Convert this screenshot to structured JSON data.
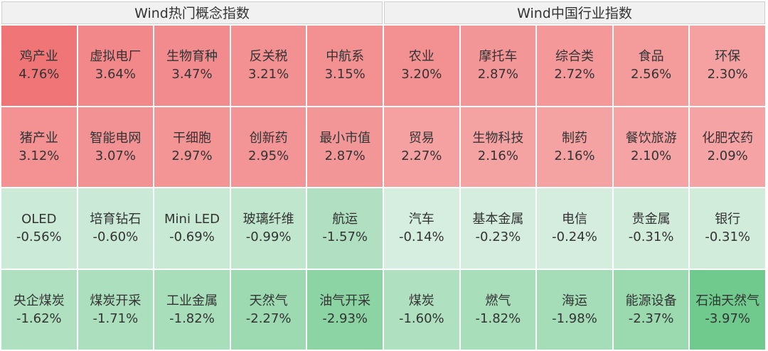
{
  "panels": [
    {
      "title": "Wind热门概念指数",
      "cells": [
        {
          "name": "鸡产业",
          "change": "4.76%"
        },
        {
          "name": "虚拟电厂",
          "change": "3.64%"
        },
        {
          "name": "生物育种",
          "change": "3.47%"
        },
        {
          "name": "反关税",
          "change": "3.21%"
        },
        {
          "name": "中航系",
          "change": "3.15%"
        },
        {
          "name": "猪产业",
          "change": "3.12%"
        },
        {
          "name": "智能电网",
          "change": "3.07%"
        },
        {
          "name": "干细胞",
          "change": "2.97%"
        },
        {
          "name": "创新药",
          "change": "2.95%"
        },
        {
          "name": "最小市值",
          "change": "2.87%"
        },
        {
          "name": "OLED",
          "change": "-0.56%"
        },
        {
          "name": "培育钻石",
          "change": "-0.60%"
        },
        {
          "name": "Mini LED",
          "change": "-0.69%"
        },
        {
          "name": "玻璃纤维",
          "change": "-0.99%"
        },
        {
          "name": "航运",
          "change": "-1.57%"
        },
        {
          "name": "央企煤炭",
          "change": "-1.62%"
        },
        {
          "name": "煤炭开采",
          "change": "-1.71%"
        },
        {
          "name": "工业金属",
          "change": "-1.82%"
        },
        {
          "name": "天然气",
          "change": "-2.27%"
        },
        {
          "name": "油气开采",
          "change": "-2.93%"
        }
      ]
    },
    {
      "title": "Wind中国行业指数",
      "cells": [
        {
          "name": "农业",
          "change": "3.20%"
        },
        {
          "name": "摩托车",
          "change": "2.87%"
        },
        {
          "name": "综合类",
          "change": "2.72%"
        },
        {
          "name": "食品",
          "change": "2.56%"
        },
        {
          "name": "环保",
          "change": "2.30%"
        },
        {
          "name": "贸易",
          "change": "2.27%"
        },
        {
          "name": "生物科技",
          "change": "2.16%"
        },
        {
          "name": "制药",
          "change": "2.16%"
        },
        {
          "name": "餐饮旅游",
          "change": "2.10%"
        },
        {
          "name": "化肥农药",
          "change": "2.09%"
        },
        {
          "name": "汽车",
          "change": "-0.14%"
        },
        {
          "name": "基本金属",
          "change": "-0.23%"
        },
        {
          "name": "电信",
          "change": "-0.24%"
        },
        {
          "name": "贵金属",
          "change": "-0.31%"
        },
        {
          "name": "银行",
          "change": "-0.31%"
        },
        {
          "name": "煤炭",
          "change": "-1.60%"
        },
        {
          "name": "燃气",
          "change": "-1.82%"
        },
        {
          "name": "海运",
          "change": "-1.98%"
        },
        {
          "name": "能源设备",
          "change": "-2.37%"
        },
        {
          "name": "石油天然气",
          "change": "-3.97%"
        }
      ]
    }
  ]
}
